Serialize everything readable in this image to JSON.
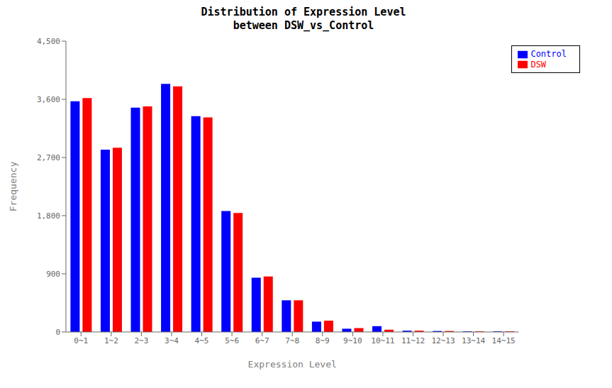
{
  "chart_data": {
    "type": "bar",
    "title": "Distribution of Expression Level\nbetween DSW_vs_Control",
    "x_label": "Expression Level",
    "y_label": "Frequency",
    "categories": [
      "0~1",
      "1~2",
      "2~3",
      "3~4",
      "4~5",
      "5~6",
      "6~7",
      "7~8",
      "8~9",
      "9~10",
      "10~11",
      "11~12",
      "12~13",
      "13~14",
      "14~15"
    ],
    "series": [
      {
        "name": "Control",
        "color": "#0000FF",
        "values": [
          3570,
          2820,
          3470,
          3840,
          3340,
          1870,
          840,
          490,
          160,
          50,
          90,
          20,
          15,
          10,
          10
        ]
      },
      {
        "name": "DSW",
        "color": "#FF0000",
        "values": [
          3620,
          2850,
          3490,
          3800,
          3320,
          1840,
          860,
          490,
          175,
          60,
          35,
          20,
          15,
          10,
          10
        ]
      }
    ],
    "ylim": [
      0,
      4500
    ],
    "yticks": [
      0,
      900,
      {
        "value": 1800,
        "label": "1,800"
      },
      {
        "value": 2700,
        "label": "2,700"
      },
      {
        "value": 3600,
        "label": "3,600"
      },
      {
        "value": 4500,
        "label": "4,500"
      }
    ],
    "grid": false,
    "legend": "upper right"
  }
}
